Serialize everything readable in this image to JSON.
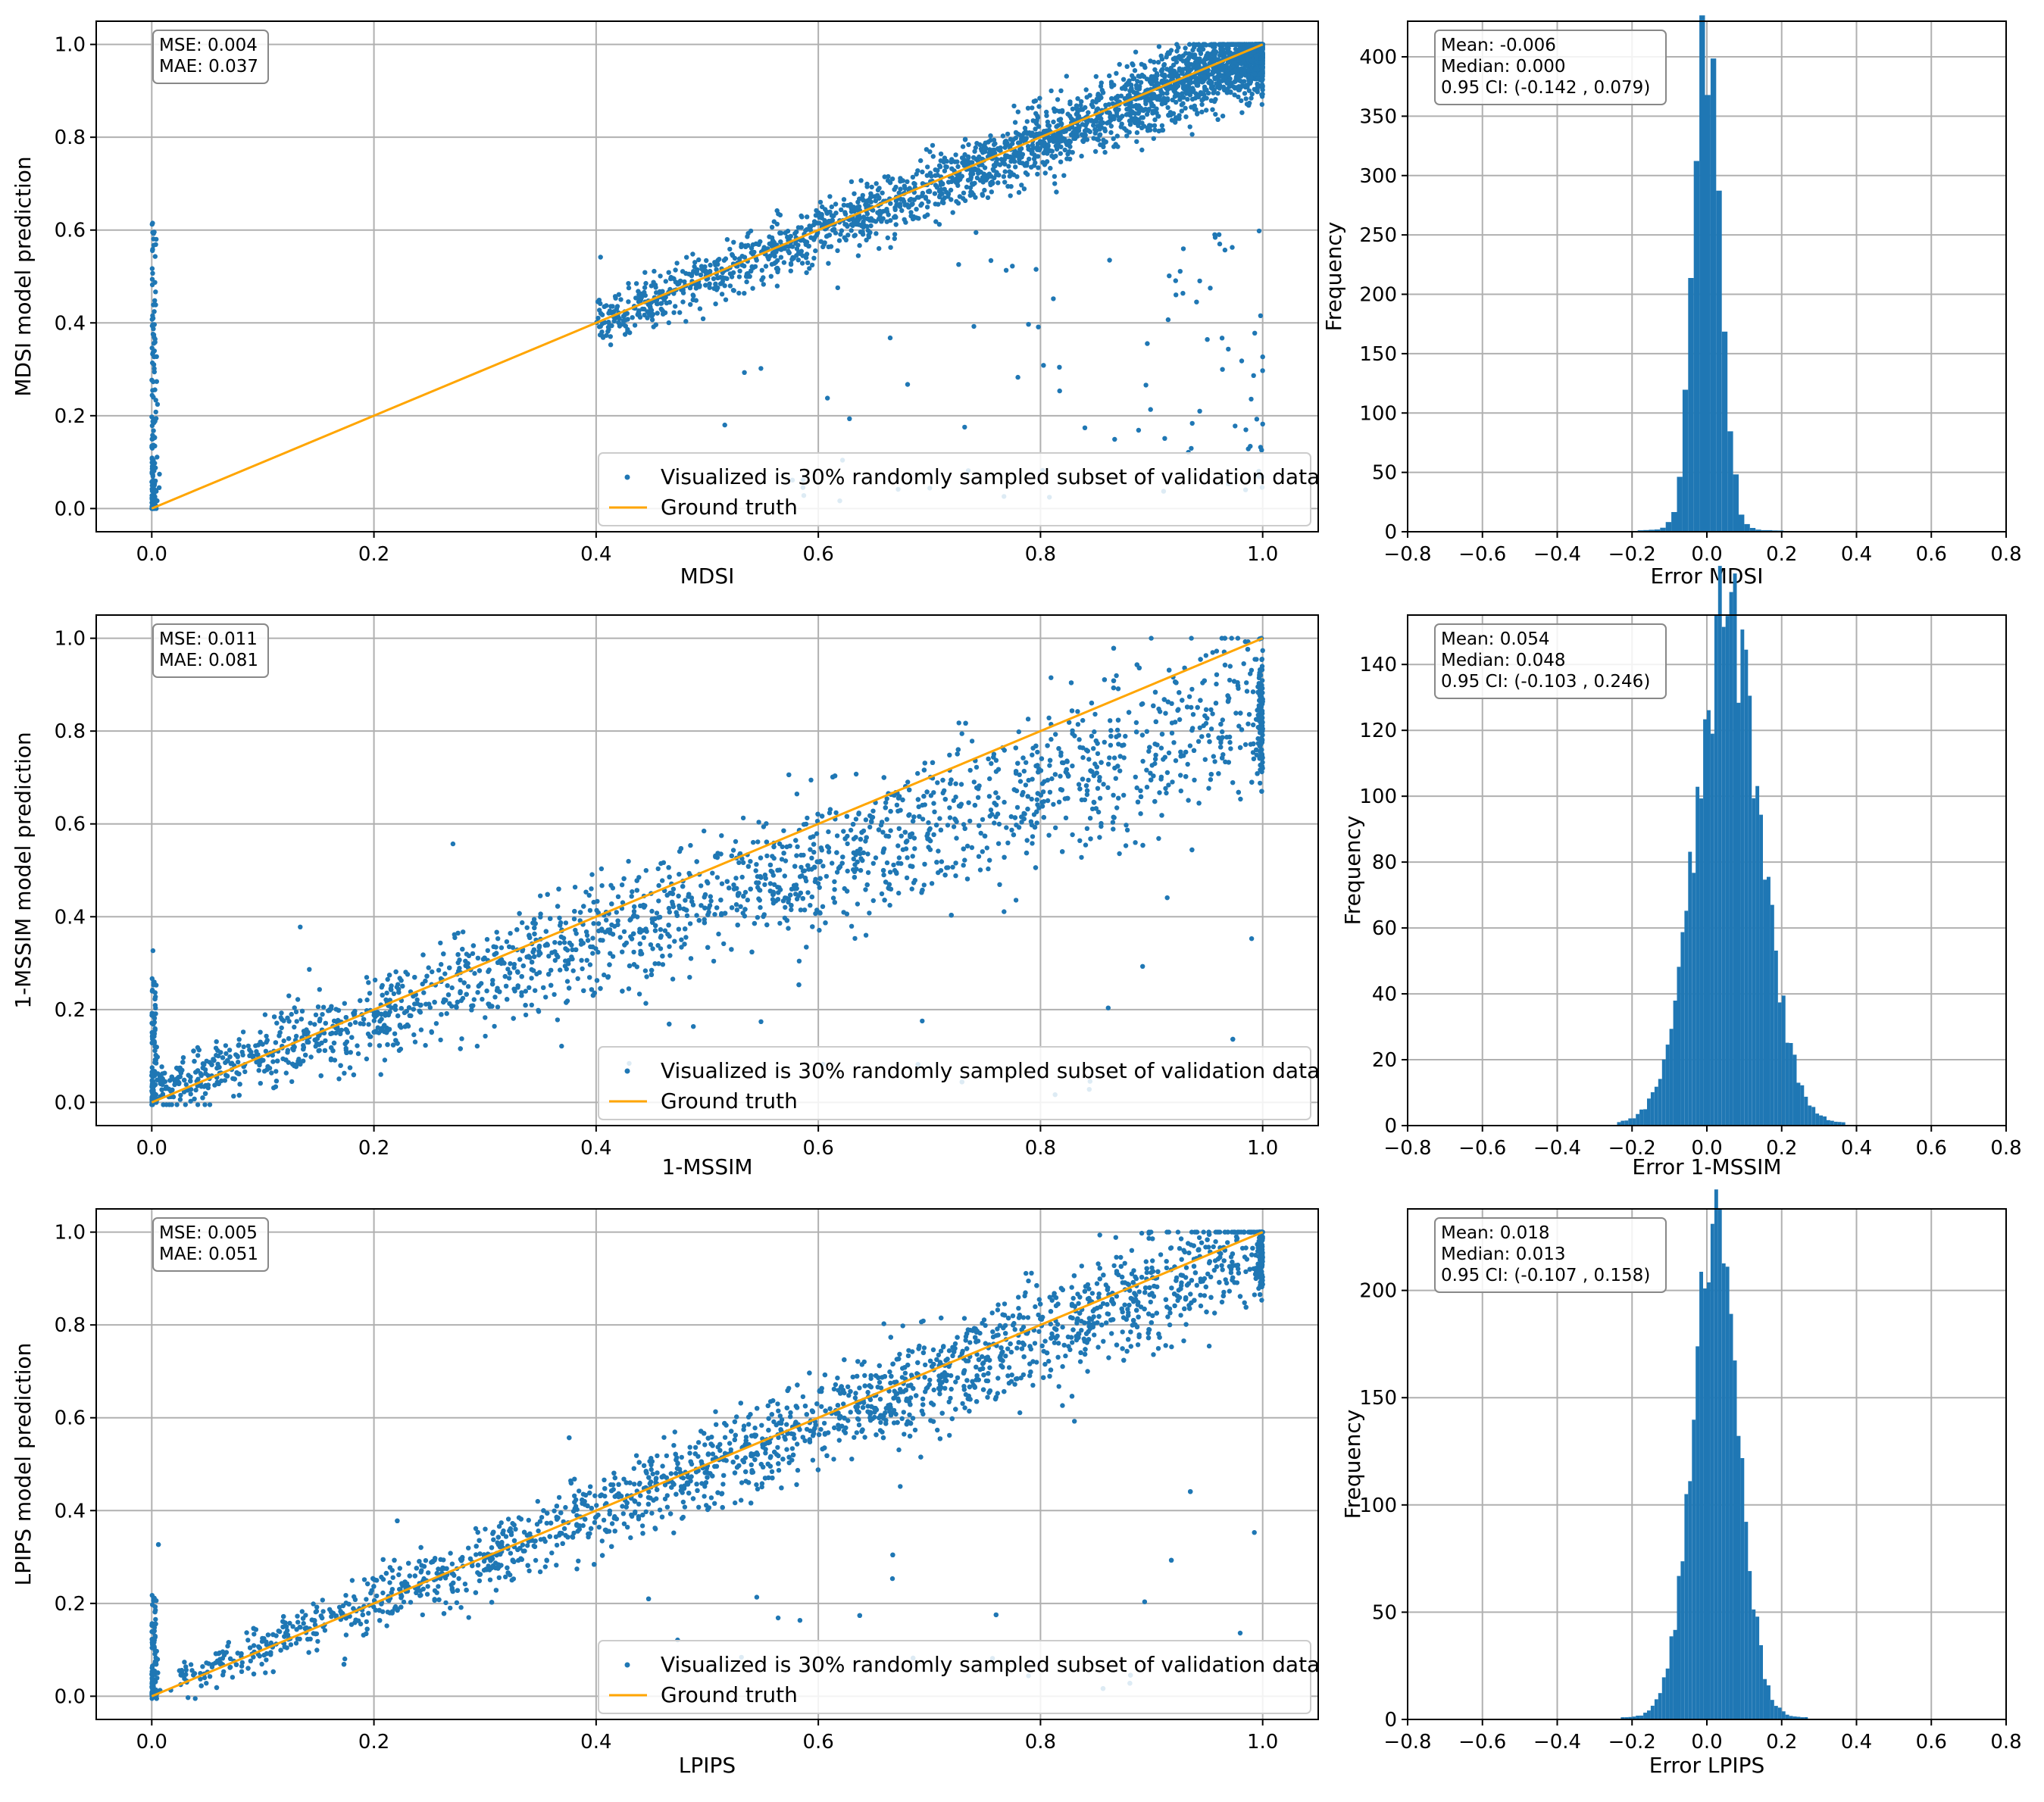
{
  "colors": {
    "points": "#1f77b4",
    "truth": "#ffa500",
    "bars": "#1f77b4",
    "grid": "#b0b0b0"
  },
  "chart_data": [
    {
      "type": "scatter",
      "id": "mdsi-scatter",
      "xlabel": "MDSI",
      "ylabel": "MDSI model prediction",
      "xlim": [
        -0.05,
        1.05
      ],
      "ylim": [
        -0.05,
        1.05
      ],
      "xticks": [
        "0.0",
        "0.2",
        "0.4",
        "0.6",
        "0.8",
        "1.0"
      ],
      "yticks": [
        "0.0",
        "0.2",
        "0.4",
        "0.6",
        "0.8",
        "1.0"
      ],
      "stats": [
        "MSE: 0.004",
        "MAE: 0.037"
      ],
      "legend": [
        "Visualized is 30% randomly sampled subset of validation data",
        "Ground truth"
      ],
      "truth_line": [
        [
          0,
          0
        ],
        [
          1,
          1
        ]
      ],
      "sample": {
        "n_points": 3200,
        "slope": 0.99,
        "intercept": 0.0,
        "noise_sd": 0.035,
        "x_concentration": "high-end",
        "zero_column_max": 0.62,
        "outlier_fraction": 0.03
      }
    },
    {
      "type": "histogram",
      "id": "mdsi-hist",
      "xlabel": "Error MDSI",
      "ylabel": "Frequency",
      "xlim": [
        -0.8,
        0.8
      ],
      "ylim": [
        0,
        430
      ],
      "xticks": [
        "−0.8",
        "−0.6",
        "−0.4",
        "−0.2",
        "0.0",
        "0.2",
        "0.4",
        "0.6",
        "0.8"
      ],
      "yticks": [
        "0",
        "50",
        "100",
        "150",
        "200",
        "250",
        "300",
        "350",
        "400"
      ],
      "stats": [
        "Mean: -0.006",
        "Median: 0.000",
        "0.95 CI: (-0.142 , 0.079)"
      ],
      "bins": {
        "center": -0.006,
        "width": 0.015,
        "peak": 420,
        "spread": 0.035,
        "tail_range": [
          -0.62,
          0.38
        ]
      }
    },
    {
      "type": "scatter",
      "id": "mssim-scatter",
      "xlabel": "1-MSSIM",
      "ylabel": "1-MSSIM model prediction",
      "xlim": [
        -0.05,
        1.05
      ],
      "ylim": [
        -0.05,
        1.05
      ],
      "xticks": [
        "0.0",
        "0.2",
        "0.4",
        "0.6",
        "0.8",
        "1.0"
      ],
      "yticks": [
        "0.0",
        "0.2",
        "0.4",
        "0.6",
        "0.8",
        "1.0"
      ],
      "stats": [
        "MSE: 0.011",
        "MAE: 0.081"
      ],
      "legend": [
        "Visualized is 30% randomly sampled subset of validation data",
        "Ground truth"
      ],
      "truth_line": [
        [
          0,
          0
        ],
        [
          1,
          1
        ]
      ],
      "sample": {
        "n_points": 2800,
        "slope": 0.82,
        "intercept": 0.02,
        "noise_sd": 0.08,
        "x_concentration": "uniform",
        "zero_column_max": 0.27,
        "outlier_fraction": 0.02
      }
    },
    {
      "type": "histogram",
      "id": "mssim-hist",
      "xlabel": "Error 1-MSSIM",
      "ylabel": "Frequency",
      "xlim": [
        -0.8,
        0.8
      ],
      "ylim": [
        0,
        155
      ],
      "xticks": [
        "−0.8",
        "−0.6",
        "−0.4",
        "−0.2",
        "0.0",
        "0.2",
        "0.4",
        "0.6",
        "0.8"
      ],
      "yticks": [
        "0",
        "20",
        "40",
        "60",
        "80",
        "100",
        "120",
        "140"
      ],
      "stats": [
        "Mean: 0.054",
        "Median: 0.048",
        "0.95 CI: (-0.103 , 0.246)"
      ],
      "bins": {
        "center": 0.054,
        "width": 0.01,
        "peak": 152,
        "spread": 0.085,
        "tail_range": [
          -0.27,
          0.43
        ]
      }
    },
    {
      "type": "scatter",
      "id": "lpips-scatter",
      "xlabel": "LPIPS",
      "ylabel": "LPIPS model prediction",
      "xlim": [
        -0.05,
        1.05
      ],
      "ylim": [
        -0.05,
        1.05
      ],
      "xticks": [
        "0.0",
        "0.2",
        "0.4",
        "0.6",
        "0.8",
        "1.0"
      ],
      "yticks": [
        "0.0",
        "0.2",
        "0.4",
        "0.6",
        "0.8",
        "1.0"
      ],
      "stats": [
        "MSE: 0.005",
        "MAE: 0.051"
      ],
      "legend": [
        "Visualized is 30% randomly sampled subset of validation data",
        "Ground truth"
      ],
      "truth_line": [
        [
          0,
          0
        ],
        [
          1,
          1
        ]
      ],
      "sample": {
        "n_points": 2900,
        "slope": 0.96,
        "intercept": 0.01,
        "noise_sd": 0.055,
        "x_concentration": "mid-high",
        "zero_column_max": 0.22,
        "outlier_fraction": 0.02
      }
    },
    {
      "type": "histogram",
      "id": "lpips-hist",
      "xlabel": "Error LPIPS",
      "ylabel": "Frequency",
      "xlim": [
        -0.8,
        0.8
      ],
      "ylim": [
        0,
        238
      ],
      "xticks": [
        "−0.8",
        "−0.6",
        "−0.4",
        "−0.2",
        "0.0",
        "0.2",
        "0.4",
        "0.6",
        "0.8"
      ],
      "yticks": [
        "0",
        "50",
        "100",
        "150",
        "200"
      ],
      "stats": [
        "Mean: 0.018",
        "Median: 0.013",
        "0.95 CI: (-0.107 , 0.158)"
      ],
      "bins": {
        "center": 0.018,
        "width": 0.01,
        "peak": 228,
        "spread": 0.06,
        "tail_range": [
          -0.3,
          0.33
        ]
      }
    }
  ]
}
